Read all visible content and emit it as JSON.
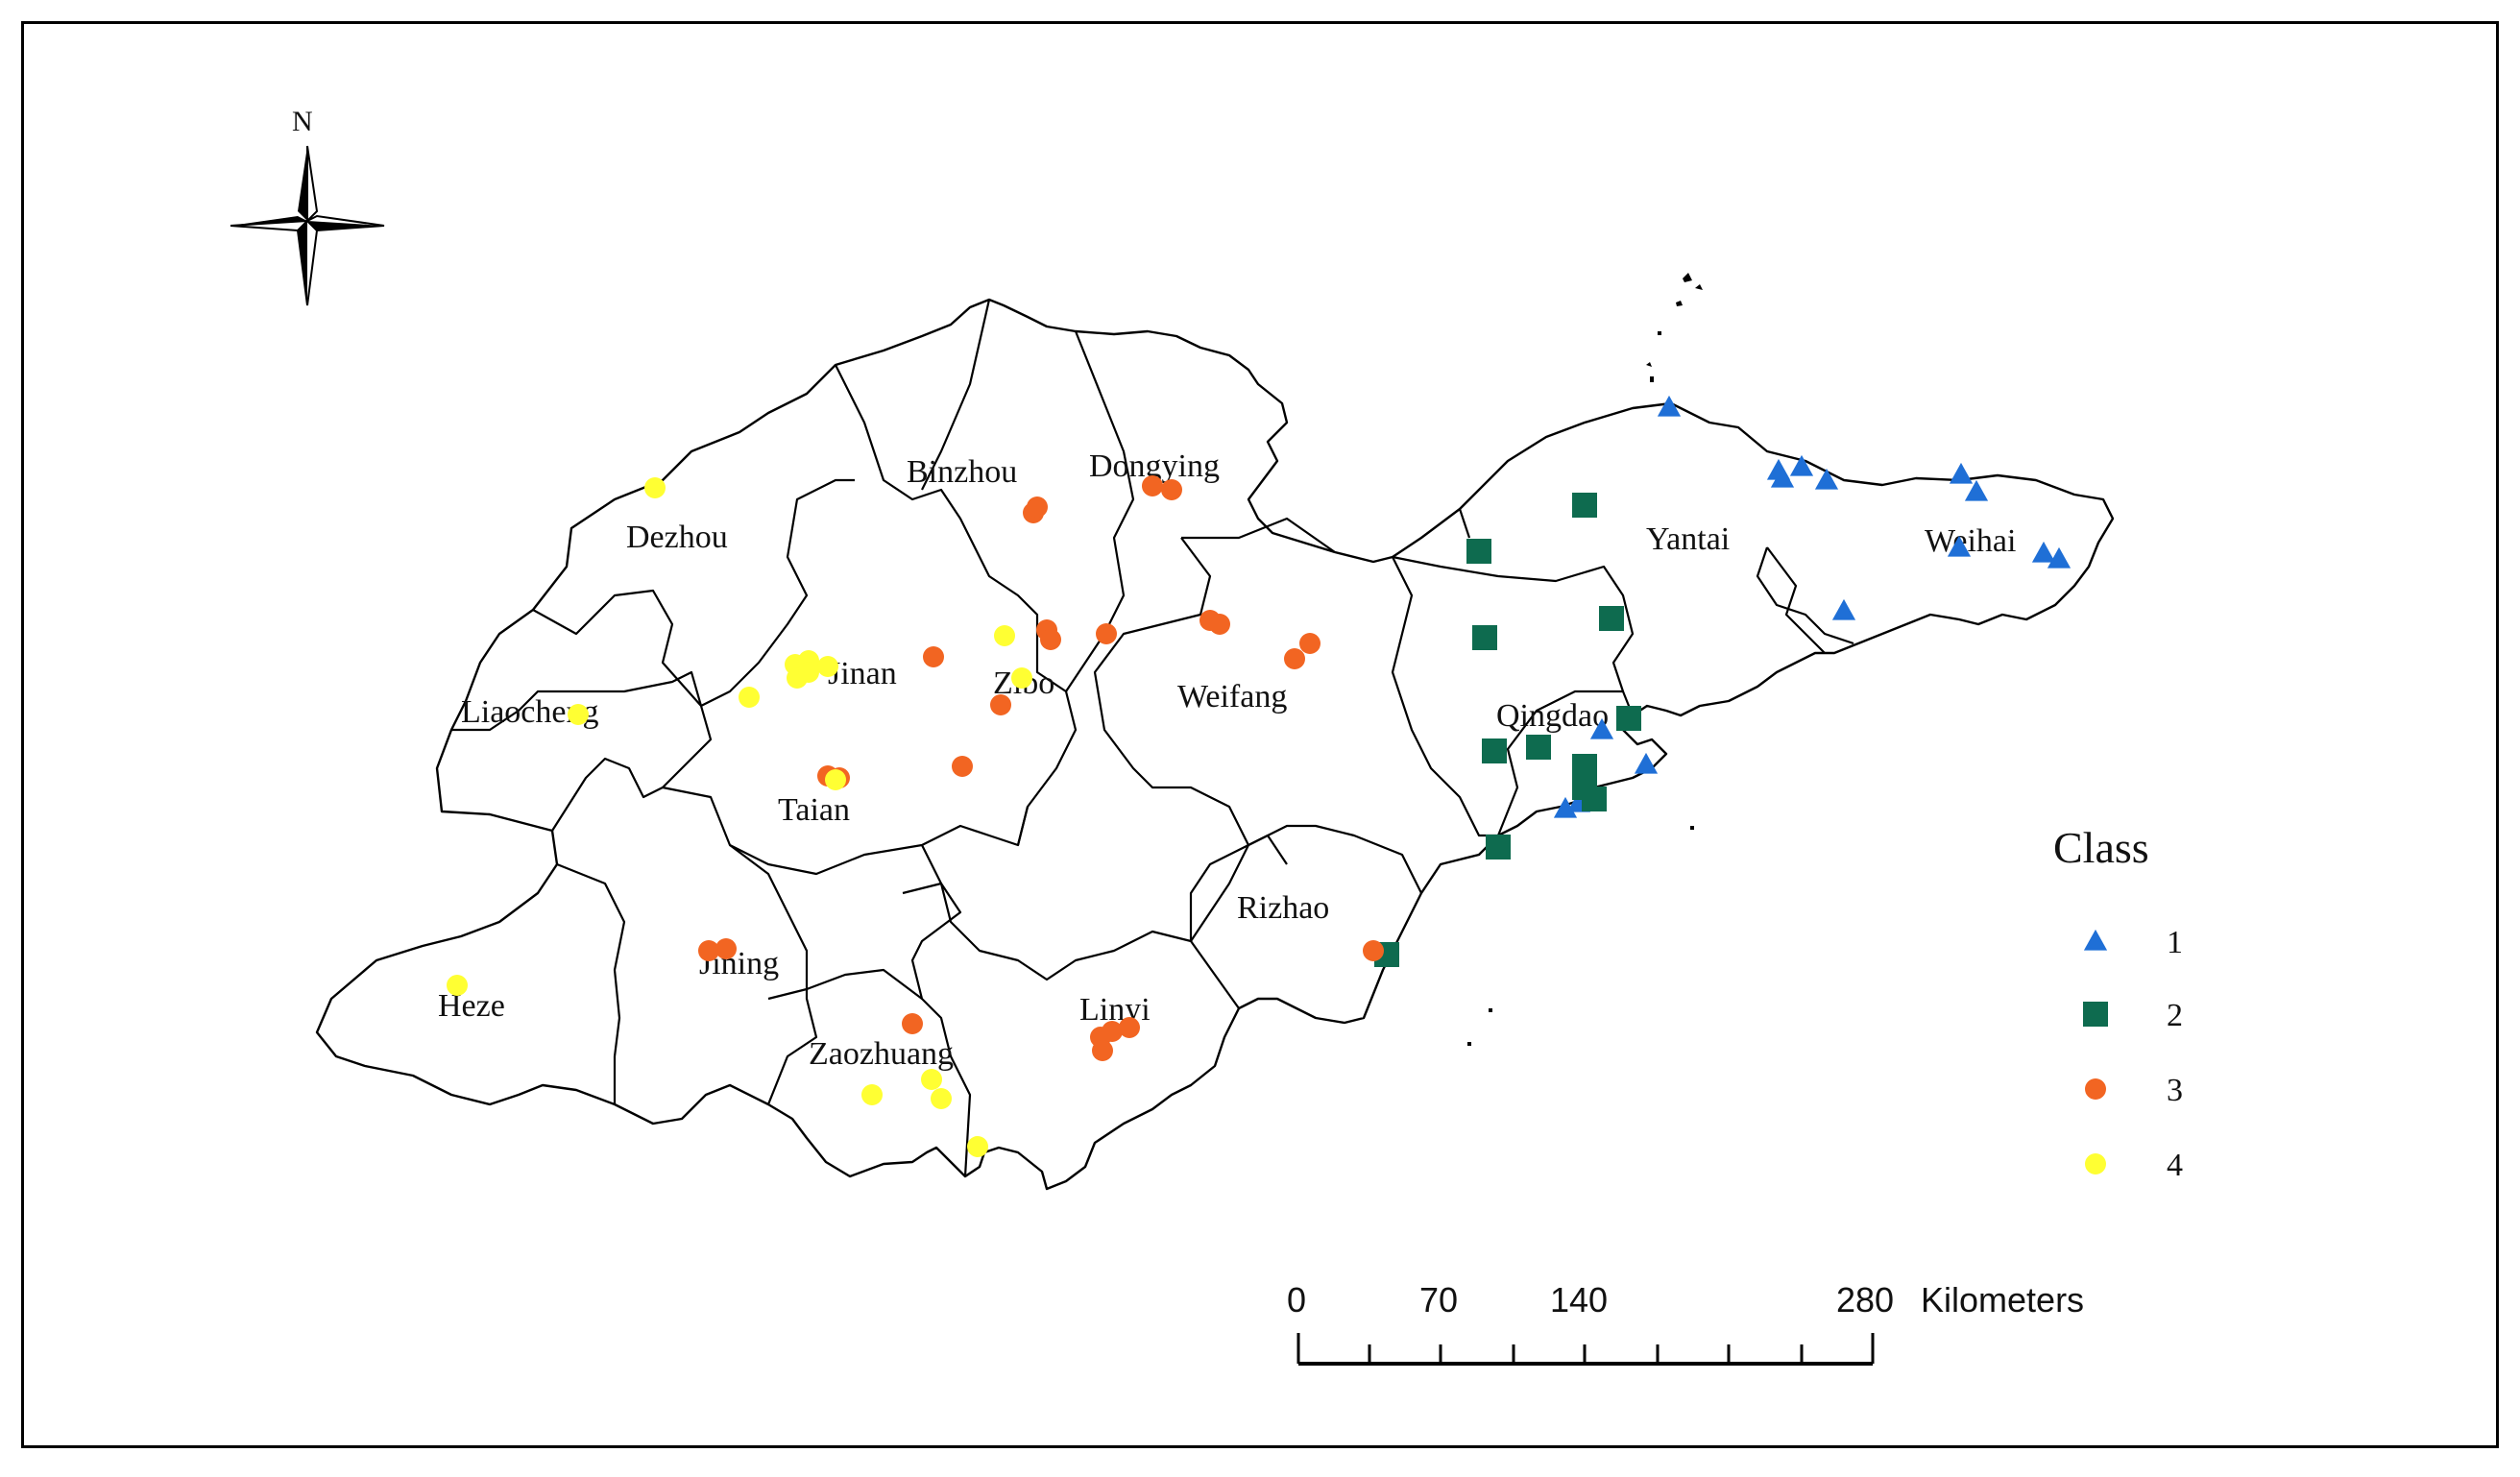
{
  "north_arrow": {
    "label": "N"
  },
  "cities": [
    {
      "name": "Dezhou"
    },
    {
      "name": "Binzhou"
    },
    {
      "name": "Dongying"
    },
    {
      "name": "Liaocheng"
    },
    {
      "name": "Jinan"
    },
    {
      "name": "Zibo"
    },
    {
      "name": "Weifang"
    },
    {
      "name": "Yantai"
    },
    {
      "name": "Weihai"
    },
    {
      "name": "Qingdao"
    },
    {
      "name": "Taian"
    },
    {
      "name": "Rizhao"
    },
    {
      "name": "Heze"
    },
    {
      "name": "Jining"
    },
    {
      "name": "Linyi"
    },
    {
      "name": "Zaozhuang"
    }
  ],
  "legend": {
    "title": "Class",
    "items": [
      {
        "label": "1",
        "color": "#1f6fd6",
        "shape": "triangle"
      },
      {
        "label": "2",
        "color": "#0e6b4f",
        "shape": "square"
      },
      {
        "label": "3",
        "color": "#f26522",
        "shape": "circle"
      },
      {
        "label": "4",
        "color": "#ffff33",
        "shape": "circle"
      }
    ]
  },
  "scale_bar": {
    "ticks": [
      "0",
      "70",
      "140",
      "280"
    ],
    "unit": "Kilometers"
  }
}
